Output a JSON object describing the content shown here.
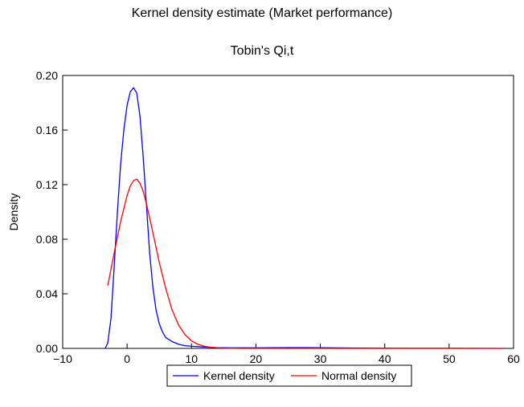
{
  "chart_data": {
    "type": "line",
    "title": "Kernel density estimate (Market performance)",
    "subtitle": "Tobin's Qi,t",
    "xlabel": "",
    "ylabel": "Density",
    "xlim": [
      -10,
      60
    ],
    "ylim": [
      0,
      0.2
    ],
    "x_ticks": [
      -10,
      0,
      10,
      20,
      30,
      40,
      50,
      60
    ],
    "x_tick_labels": [
      "−10",
      "0",
      "10",
      "20",
      "30",
      "40",
      "50",
      "60"
    ],
    "y_ticks": [
      0,
      0.04,
      0.08,
      0.12,
      0.16,
      0.2
    ],
    "y_tick_labels": [
      "0.00",
      "0.04",
      "0.08",
      "0.12",
      "0.16",
      "0.20"
    ],
    "grid": false,
    "legend_position": "bottom-center",
    "series": [
      {
        "name": "Kernel density",
        "color": "#0000ff",
        "x": [
          -3.4,
          -3.0,
          -2.5,
          -2.0,
          -1.5,
          -1.0,
          -0.5,
          0.0,
          0.5,
          1.0,
          1.5,
          2.0,
          2.5,
          3.0,
          3.5,
          4.0,
          4.5,
          5.0,
          5.5,
          6.0,
          7.0,
          8.0,
          9.0,
          10.0,
          12.0,
          14.0,
          16.0,
          20.0,
          25.0,
          30.0,
          35.0,
          40.0,
          50.0,
          58.5
        ],
        "y": [
          0.0,
          0.004,
          0.022,
          0.06,
          0.1,
          0.135,
          0.16,
          0.178,
          0.188,
          0.191,
          0.187,
          0.17,
          0.14,
          0.105,
          0.07,
          0.045,
          0.028,
          0.018,
          0.012,
          0.008,
          0.005,
          0.003,
          0.002,
          0.0015,
          0.001,
          0.0006,
          0.0004,
          0.0004,
          0.0006,
          0.0005,
          0.0003,
          0.0002,
          0.0001,
          0.0
        ]
      },
      {
        "name": "Normal density",
        "color": "#ff0000",
        "x": [
          -3.0,
          -2.0,
          -1.0,
          0.0,
          0.5,
          1.0,
          1.5,
          2.0,
          2.5,
          3.0,
          4.0,
          5.0,
          6.0,
          7.0,
          8.0,
          9.0,
          10.0,
          11.0,
          12.0,
          13.0,
          14.0,
          15.0,
          16.0,
          18.0,
          20.0,
          25.0,
          30.0,
          40.0,
          50.0,
          58.5
        ],
        "y": [
          0.046,
          0.07,
          0.093,
          0.112,
          0.119,
          0.123,
          0.124,
          0.121,
          0.115,
          0.106,
          0.085,
          0.063,
          0.044,
          0.028,
          0.017,
          0.01,
          0.0055,
          0.003,
          0.0015,
          0.0008,
          0.0004,
          0.0002,
          0.0001,
          0.0,
          0.0,
          0.0,
          0.0,
          0.0,
          0.0,
          0.0
        ]
      }
    ]
  }
}
